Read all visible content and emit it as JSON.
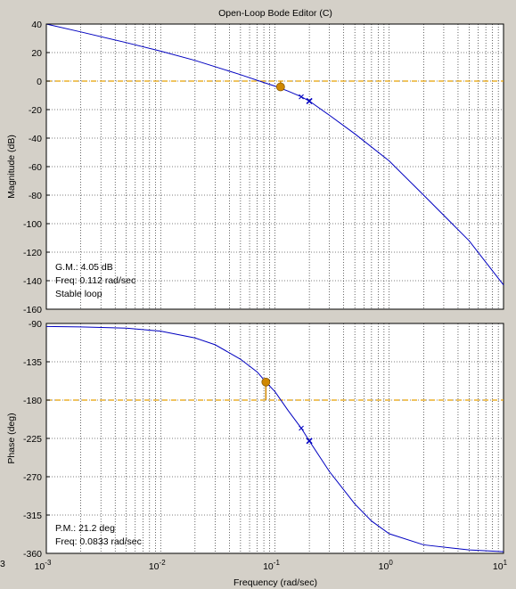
{
  "window_title": "Open-Loop Bode Editor (C)",
  "colors": {
    "background": "#d4d0c8",
    "plot_bg": "#ffffff",
    "grid": "#000000",
    "curve": "#0000c0",
    "stability_line": "#e8a000",
    "marker": "#d08800"
  },
  "chart_data": [
    {
      "type": "line",
      "title": "",
      "xlabel": "",
      "ylabel": "Magnitude (dB)",
      "xscale": "log",
      "xlim": [
        0.001,
        10
      ],
      "ylim": [
        -160,
        40
      ],
      "yticks": [
        "40",
        "20",
        "0",
        "-20",
        "-40",
        "-60",
        "-80",
        "-100",
        "-120",
        "-140",
        "-160"
      ],
      "grid": true,
      "reference_line": {
        "y": 0
      },
      "series": [
        {
          "x": [
            0.001,
            0.002,
            0.005,
            0.01,
            0.02,
            0.05,
            0.08,
            0.1,
            0.13,
            0.17,
            0.2,
            0.3,
            0.5,
            1,
            2,
            5,
            10
          ],
          "y": [
            40,
            34.5,
            27,
            21,
            14.5,
            4.5,
            -1,
            -3.5,
            -7,
            -11,
            -14,
            -24,
            -37,
            -56,
            -80,
            -112,
            -143
          ]
        }
      ],
      "margin_marker": {
        "x": 0.112,
        "y": -4.05
      },
      "zero_markers": [
        {
          "x": 0.17,
          "y": -11
        }
      ],
      "pole_markers": [
        {
          "x": 0.2,
          "y": -14
        }
      ],
      "annotation": [
        "G.M.: 4.05 dB",
        "Freq: 0.112 rad/sec",
        "Stable loop"
      ]
    },
    {
      "type": "line",
      "title": "",
      "xlabel": "Frequency (rad/sec)",
      "ylabel": "Phase (deg)",
      "xscale": "log",
      "xlim": [
        0.001,
        10
      ],
      "ylim": [
        -360,
        -90
      ],
      "yticks": [
        "-90",
        "-135",
        "-180",
        "-225",
        "-270",
        "-315",
        "-360"
      ],
      "xticks": [
        {
          "base": "10",
          "exp": "-3"
        },
        {
          "base": "10",
          "exp": "-2"
        },
        {
          "base": "10",
          "exp": "-1"
        },
        {
          "base": "10",
          "exp": "0"
        },
        {
          "base": "10",
          "exp": "1"
        }
      ],
      "grid": true,
      "reference_line": {
        "y": -180
      },
      "series": [
        {
          "x": [
            0.001,
            0.002,
            0.005,
            0.01,
            0.02,
            0.03,
            0.05,
            0.07,
            0.0833,
            0.1,
            0.13,
            0.17,
            0.2,
            0.3,
            0.5,
            0.7,
            1,
            2,
            5,
            10
          ],
          "y": [
            -93.5,
            -94,
            -95.5,
            -99,
            -107,
            -115,
            -132,
            -147,
            -158.8,
            -170,
            -192,
            -213,
            -228,
            -264,
            -302,
            -322,
            -337,
            -350,
            -356,
            -358
          ]
        }
      ],
      "margin_marker": {
        "x": 0.0833,
        "y": -158.8
      },
      "zero_markers": [
        {
          "x": 0.17,
          "y": -213
        }
      ],
      "pole_markers": [
        {
          "x": 0.2,
          "y": -228
        }
      ],
      "annotation": [
        "P.M.: 21.2 deg",
        "Freq: 0.0833 rad/sec"
      ]
    }
  ],
  "edge_label": "3"
}
